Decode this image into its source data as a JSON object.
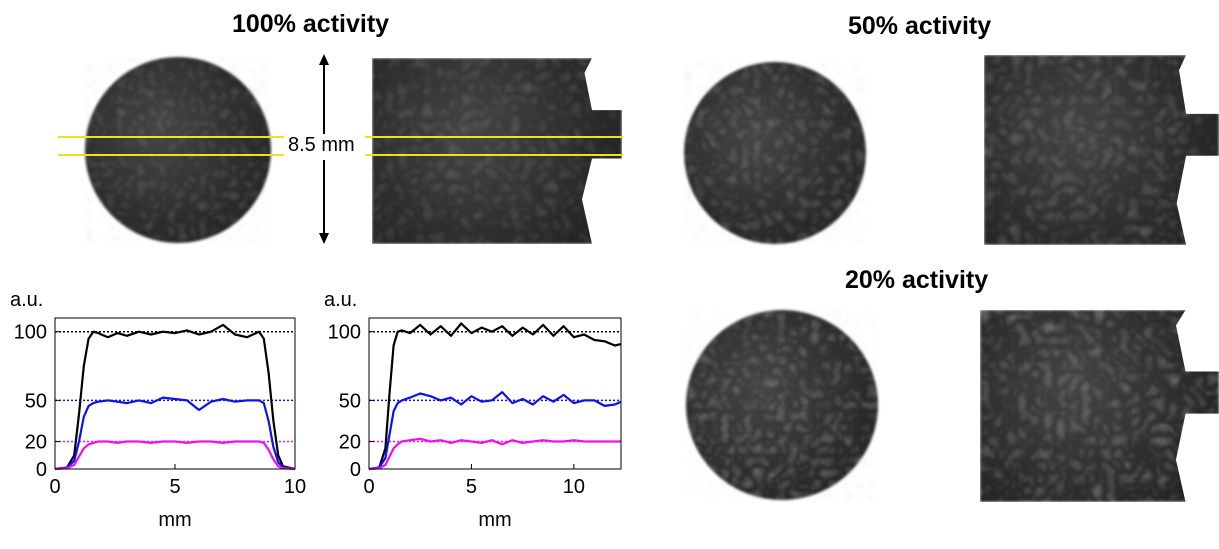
{
  "panels": {
    "full": {
      "title": "100% activity"
    },
    "half": {
      "title": "50% activity"
    },
    "fifth": {
      "title": "20% activity"
    }
  },
  "measurement": {
    "label": "8.5 mm"
  },
  "chart_data": [
    {
      "type": "line",
      "title": "",
      "xlabel": "mm",
      "ylabel": "a.u.",
      "xlim": [
        0,
        10
      ],
      "ylim": [
        0,
        110
      ],
      "xticks": [
        "0",
        "5",
        "10"
      ],
      "yticks": [
        "0",
        "20",
        "50",
        "100"
      ],
      "series": [
        {
          "color": "#000000",
          "x": [
            0,
            0.5,
            0.8,
            1.0,
            1.2,
            1.4,
            1.6,
            1.8,
            2.2,
            2.6,
            3.0,
            3.5,
            4.0,
            4.5,
            5.0,
            5.5,
            6.0,
            6.5,
            7.0,
            7.5,
            8.0,
            8.5,
            8.7,
            8.9,
            9.1,
            9.3,
            9.5,
            10.0
          ],
          "y": [
            0,
            1,
            10,
            40,
            75,
            95,
            100,
            99,
            96,
            99,
            97,
            100,
            98,
            100,
            99,
            101,
            98,
            100,
            105,
            98,
            96,
            100,
            95,
            70,
            35,
            10,
            2,
            0
          ]
        },
        {
          "color": "#1010ee",
          "x": [
            0,
            0.5,
            0.8,
            1.0,
            1.2,
            1.4,
            1.6,
            1.8,
            2.2,
            2.6,
            3.0,
            3.5,
            4.0,
            4.5,
            5.0,
            5.5,
            6.0,
            6.5,
            7.0,
            7.5,
            8.0,
            8.5,
            8.7,
            8.9,
            9.1,
            9.3,
            9.5,
            10.0
          ],
          "y": [
            0,
            1,
            6,
            20,
            38,
            46,
            48,
            49,
            50,
            49,
            48,
            50,
            48,
            52,
            51,
            50,
            43,
            49,
            51,
            49,
            50,
            50,
            48,
            35,
            16,
            5,
            1,
            0
          ]
        },
        {
          "color": "#ee10ee",
          "x": [
            0,
            0.5,
            0.8,
            1.0,
            1.2,
            1.4,
            1.6,
            1.8,
            2.2,
            2.6,
            3.0,
            3.5,
            4.0,
            4.5,
            5.0,
            5.5,
            6.0,
            6.5,
            7.0,
            7.5,
            8.0,
            8.5,
            8.7,
            8.9,
            9.1,
            9.3,
            9.5,
            10.0
          ],
          "y": [
            0,
            0.5,
            3,
            9,
            15,
            18,
            19,
            20,
            20,
            19,
            20,
            20,
            19,
            20,
            20,
            19,
            20,
            20,
            19,
            20,
            20,
            20,
            19,
            14,
            7,
            2,
            0.5,
            0
          ]
        }
      ],
      "reference_lines": [
        {
          "y": 100,
          "color": "#000000"
        },
        {
          "y": 50,
          "color": "#1010ee"
        },
        {
          "y": 20,
          "color": "#ee10ee"
        }
      ]
    },
    {
      "type": "line",
      "title": "",
      "xlabel": "mm",
      "ylabel": "a.u.",
      "xlim": [
        0,
        12.3
      ],
      "ylim": [
        0,
        110
      ],
      "xticks": [
        "0",
        "5",
        "10"
      ],
      "yticks": [
        "0",
        "20",
        "50",
        "100"
      ],
      "series": [
        {
          "color": "#000000",
          "x": [
            0,
            0.5,
            0.8,
            1.0,
            1.2,
            1.4,
            1.6,
            2.0,
            2.5,
            3.0,
            3.5,
            4.0,
            4.5,
            5.0,
            5.5,
            6.0,
            6.5,
            7.0,
            7.5,
            8.0,
            8.5,
            9.0,
            9.5,
            10.0,
            10.5,
            11.0,
            11.5,
            12.0,
            12.3
          ],
          "y": [
            0,
            1,
            15,
            55,
            90,
            100,
            101,
            99,
            105,
            98,
            104,
            97,
            106,
            99,
            103,
            100,
            104,
            97,
            103,
            98,
            105,
            97,
            104,
            96,
            98,
            94,
            93,
            90,
            91
          ]
        },
        {
          "color": "#1010ee",
          "x": [
            0,
            0.5,
            0.8,
            1.0,
            1.2,
            1.4,
            1.6,
            2.0,
            2.5,
            3.0,
            3.5,
            4.0,
            4.5,
            5.0,
            5.5,
            6.0,
            6.5,
            7.0,
            7.5,
            8.0,
            8.5,
            9.0,
            9.5,
            10.0,
            10.5,
            11.0,
            11.5,
            12.0,
            12.3
          ],
          "y": [
            0,
            1,
            8,
            25,
            42,
            48,
            50,
            52,
            55,
            53,
            50,
            52,
            47,
            53,
            49,
            50,
            56,
            48,
            51,
            47,
            53,
            49,
            54,
            48,
            50,
            50,
            46,
            47,
            49
          ]
        },
        {
          "color": "#ee10ee",
          "x": [
            0,
            0.5,
            0.8,
            1.0,
            1.2,
            1.4,
            1.6,
            2.0,
            2.5,
            3.0,
            3.5,
            4.0,
            4.5,
            5.0,
            5.5,
            6.0,
            6.5,
            7.0,
            7.5,
            8.0,
            8.5,
            9.0,
            9.5,
            10.0,
            10.5,
            11.0,
            11.5,
            12.0,
            12.3
          ],
          "y": [
            0,
            0.5,
            3,
            9,
            15,
            18,
            20,
            21,
            22,
            20,
            21,
            19,
            21,
            20,
            19,
            21,
            18,
            21,
            19,
            20,
            21,
            20,
            20,
            21,
            20,
            20,
            20,
            20,
            20
          ]
        }
      ],
      "reference_lines": [
        {
          "y": 100,
          "color": "#000000"
        },
        {
          "y": 50,
          "color": "#1010ee"
        },
        {
          "y": 20,
          "color": "#ee10ee"
        }
      ]
    }
  ]
}
